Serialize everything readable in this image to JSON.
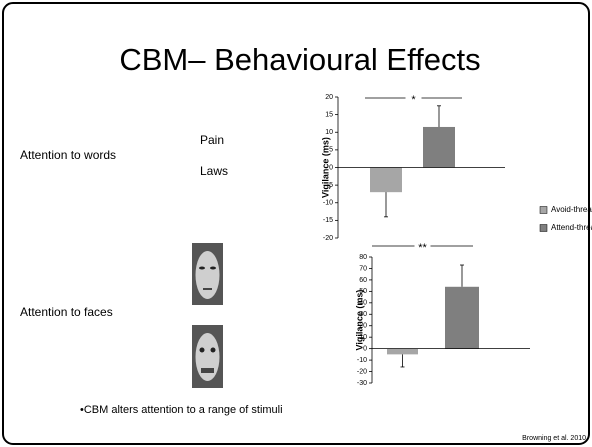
{
  "title": "CBM– Behavioural Effects",
  "rows": [
    {
      "label": "Attention to words",
      "items": [
        "Pain",
        "Laws"
      ]
    },
    {
      "label": "Attention to faces"
    }
  ],
  "bullet": "•CBM alters attention to a range of stimuli",
  "citation": "Browning et al. 2010",
  "chart_data": [
    {
      "type": "bar",
      "y_label": "Vigilance (ms)",
      "annotation": "*",
      "ylim": [
        -20,
        20
      ],
      "yticks": [
        -20,
        -15,
        -10,
        -5,
        0,
        5,
        10,
        15,
        20
      ],
      "legend": "right",
      "series": [
        {
          "name": "Avoid-threat",
          "color": "#a6a6a6",
          "values": [
            -7
          ],
          "errors": [
            7
          ]
        },
        {
          "name": "Attend-threat",
          "color": "#7f7f7f",
          "values": [
            11.5
          ],
          "errors": [
            6
          ]
        }
      ]
    },
    {
      "type": "bar",
      "y_label": "Vigilance (ms)",
      "annotation": "**",
      "ylim": [
        -30,
        80
      ],
      "yticks": [
        -30,
        -20,
        -10,
        0,
        10,
        20,
        30,
        40,
        50,
        60,
        70,
        80
      ],
      "series": [
        {
          "color": "#a6a6a6",
          "values": [
            -5
          ],
          "errors": [
            11
          ]
        },
        {
          "color": "#7f7f7f",
          "values": [
            54
          ],
          "errors": [
            19
          ]
        }
      ]
    }
  ]
}
